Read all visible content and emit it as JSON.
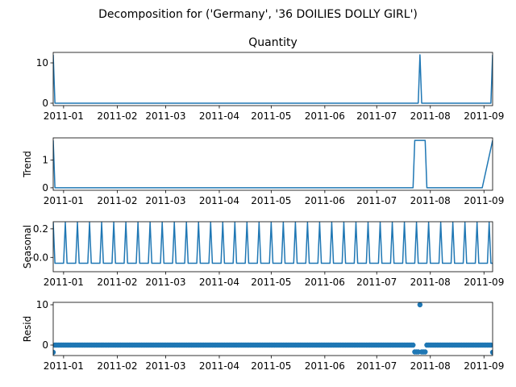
{
  "chart_data": {
    "type": "line",
    "title": "Decomposition for ('Germany', '36 DOILIES DOLLY GIRL')",
    "x_range": [
      "2010-12-26",
      "2011-09-06"
    ],
    "x_ticks": [
      "2011-01",
      "2011-02",
      "2011-03",
      "2011-04",
      "2011-05",
      "2011-06",
      "2011-07",
      "2011-08",
      "2011-09"
    ],
    "period_days": 7,
    "panels": [
      {
        "name": "observed",
        "subtitle": "Quantity",
        "ylabel": "",
        "ylim": [
          -0.6,
          12.6
        ],
        "yticks": [
          "0",
          "10"
        ],
        "style": "line",
        "points": [
          [
            "2010-12-26",
            12
          ],
          [
            "2010-12-27",
            0
          ],
          [
            "2011-07-25",
            0
          ],
          [
            "2011-07-26",
            12
          ],
          [
            "2011-07-27",
            0
          ],
          [
            "2011-09-05",
            0
          ],
          [
            "2011-09-06",
            12
          ]
        ]
      },
      {
        "name": "trend",
        "subtitle": "",
        "ylabel": "Trend",
        "ylim": [
          -0.09,
          1.8
        ],
        "yticks": [
          "0",
          "1"
        ],
        "style": "line",
        "points": [
          [
            "2010-12-26",
            1.71
          ],
          [
            "2010-12-27",
            0
          ],
          [
            "2011-07-22",
            0
          ],
          [
            "2011-07-23",
            1.71
          ],
          [
            "2011-07-29",
            1.71
          ],
          [
            "2011-07-30",
            0
          ],
          [
            "2011-08-31",
            0
          ],
          [
            "2011-09-06",
            1.71
          ]
        ]
      },
      {
        "name": "seasonal",
        "subtitle": "",
        "ylabel": "Seasonal",
        "ylim": [
          -0.1,
          0.25
        ],
        "yticks": [
          "0.2",
          "-0.0"
        ],
        "style": "line",
        "weekly_pattern": [
          0.245,
          -0.041,
          -0.041,
          -0.041,
          -0.041,
          -0.041,
          -0.041
        ],
        "weekly_pattern_start": "2010-12-26"
      },
      {
        "name": "resid",
        "subtitle": "",
        "ylabel": "Resid",
        "ylim": [
          -2.6,
          10.6
        ],
        "yticks": [
          "0",
          "10"
        ],
        "style": "scatter",
        "baseline": 0,
        "outliers": [
          [
            "2010-12-26",
            -1.8
          ],
          [
            "2011-07-23",
            -1.7
          ],
          [
            "2011-07-24",
            -1.7
          ],
          [
            "2011-07-25",
            -1.7
          ],
          [
            "2011-07-26",
            10.0
          ],
          [
            "2011-07-27",
            -1.7
          ],
          [
            "2011-07-28",
            -1.7
          ],
          [
            "2011-07-29",
            -1.7
          ],
          [
            "2011-09-06",
            -1.8
          ]
        ]
      }
    ]
  }
}
